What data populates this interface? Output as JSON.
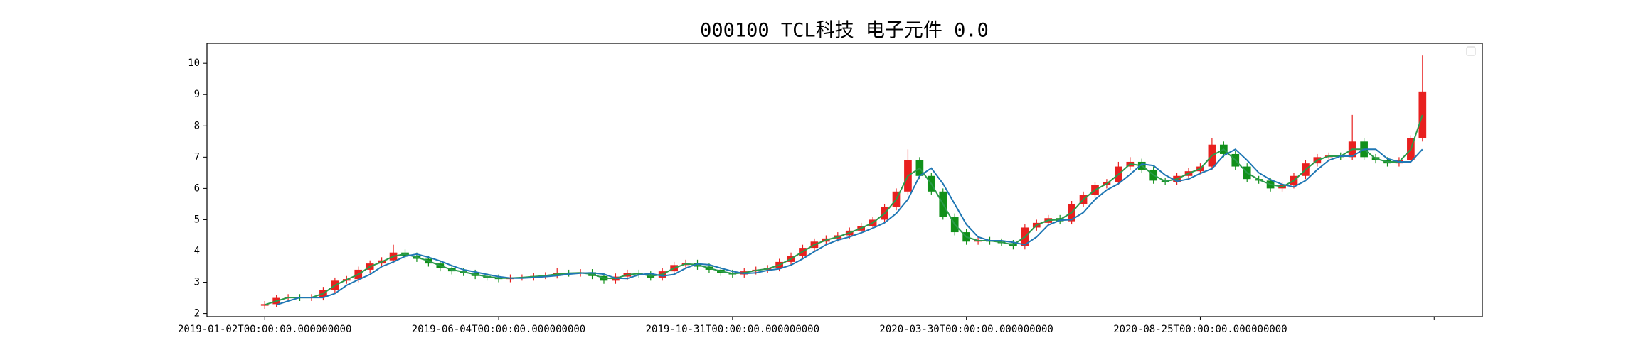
{
  "chart_data": {
    "type": "candlestick",
    "title": "000100 TCL科技 电子元件 0.0",
    "x": [
      0,
      5,
      10,
      15,
      20,
      25,
      30,
      35,
      40,
      45,
      50,
      55,
      60,
      65,
      70,
      75,
      80,
      85,
      90,
      95,
      100,
      105,
      110,
      115,
      120,
      125,
      130,
      135,
      140,
      145,
      150,
      155,
      160,
      165,
      170,
      175,
      180,
      185,
      190,
      195,
      200,
      205,
      210,
      215,
      220,
      225,
      230,
      235,
      240,
      245,
      250,
      255,
      260,
      265,
      270,
      275,
      280,
      285,
      290,
      295,
      300,
      305,
      310,
      315,
      320,
      325,
      330,
      335,
      340,
      345,
      350,
      355,
      360,
      365,
      370,
      375,
      380,
      385,
      390,
      395,
      400,
      405,
      410,
      415,
      420,
      425,
      430,
      435,
      440,
      445,
      450,
      455,
      460,
      465,
      470,
      475,
      480,
      485,
      490,
      495
    ],
    "open": [
      2.25,
      2.3,
      2.5,
      2.52,
      2.5,
      2.52,
      2.75,
      3.05,
      3.1,
      3.4,
      3.6,
      3.7,
      3.95,
      3.85,
      3.75,
      3.6,
      3.45,
      3.35,
      3.3,
      3.2,
      3.15,
      3.1,
      3.15,
      3.15,
      3.2,
      3.22,
      3.3,
      3.28,
      3.32,
      3.2,
      3.05,
      3.18,
      3.3,
      3.25,
      3.15,
      3.35,
      3.55,
      3.62,
      3.5,
      3.4,
      3.3,
      3.25,
      3.35,
      3.4,
      3.45,
      3.65,
      3.85,
      4.1,
      4.3,
      4.4,
      4.5,
      4.65,
      4.8,
      5.0,
      5.4,
      5.9,
      6.9,
      6.4,
      5.9,
      5.1,
      4.6,
      4.3,
      4.35,
      4.3,
      4.25,
      4.15,
      4.75,
      4.9,
      5.05,
      4.95,
      5.5,
      5.8,
      6.1,
      6.2,
      6.7,
      6.85,
      6.6,
      6.25,
      6.2,
      6.4,
      6.55,
      6.7,
      7.4,
      7.1,
      6.7,
      6.3,
      6.25,
      6.0,
      6.1,
      6.4,
      6.8,
      7.0,
      7.05,
      7.0,
      7.5,
      7.0,
      6.9,
      6.8,
      6.9,
      7.6
    ],
    "high": [
      2.4,
      2.6,
      2.62,
      2.62,
      2.62,
      2.85,
      3.15,
      3.2,
      3.5,
      3.7,
      3.8,
      4.2,
      4.05,
      3.95,
      3.85,
      3.7,
      3.55,
      3.45,
      3.4,
      3.3,
      3.25,
      3.25,
      3.25,
      3.3,
      3.32,
      3.45,
      3.4,
      3.42,
      3.42,
      3.3,
      3.28,
      3.4,
      3.4,
      3.35,
      3.45,
      3.65,
      3.72,
      3.72,
      3.6,
      3.5,
      3.4,
      3.45,
      3.5,
      3.55,
      3.75,
      3.95,
      4.2,
      4.4,
      4.5,
      4.6,
      4.75,
      4.9,
      5.1,
      5.5,
      6.0,
      7.25,
      7.0,
      6.5,
      6.0,
      5.2,
      4.7,
      4.45,
      4.45,
      4.4,
      4.35,
      4.85,
      5.0,
      5.15,
      5.15,
      5.6,
      5.9,
      6.2,
      6.3,
      6.85,
      7.0,
      6.95,
      6.7,
      6.35,
      6.5,
      6.65,
      6.8,
      7.6,
      7.5,
      7.2,
      6.8,
      6.4,
      6.35,
      6.2,
      6.5,
      6.9,
      7.1,
      7.15,
      7.15,
      8.35,
      7.6,
      7.1,
      7.0,
      7.0,
      7.7,
      10.25
    ],
    "low": [
      2.15,
      2.2,
      2.4,
      2.4,
      2.4,
      2.42,
      2.65,
      2.95,
      3.0,
      3.3,
      3.5,
      3.6,
      3.75,
      3.65,
      3.5,
      3.35,
      3.25,
      3.2,
      3.1,
      3.05,
      3.0,
      3.0,
      3.05,
      3.05,
      3.1,
      3.12,
      3.18,
      3.18,
      3.1,
      2.95,
      2.95,
      3.08,
      3.15,
      3.05,
      3.05,
      3.25,
      3.45,
      3.4,
      3.3,
      3.2,
      3.15,
      3.15,
      3.25,
      3.3,
      3.35,
      3.55,
      3.75,
      4.0,
      4.2,
      4.3,
      4.4,
      4.55,
      4.7,
      4.9,
      5.3,
      5.8,
      6.3,
      5.8,
      5.0,
      4.5,
      4.2,
      4.2,
      4.2,
      4.15,
      4.05,
      4.05,
      4.65,
      4.8,
      4.85,
      4.85,
      5.4,
      5.7,
      6.0,
      6.1,
      6.6,
      6.5,
      6.15,
      6.1,
      6.1,
      6.3,
      6.45,
      6.6,
      7.0,
      6.6,
      6.2,
      6.15,
      5.9,
      5.9,
      6.0,
      6.3,
      6.7,
      6.9,
      6.9,
      6.9,
      6.9,
      6.8,
      6.7,
      6.7,
      6.8,
      7.5
    ],
    "close": [
      2.3,
      2.5,
      2.52,
      2.5,
      2.52,
      2.75,
      3.05,
      3.1,
      3.4,
      3.6,
      3.7,
      3.95,
      3.85,
      3.75,
      3.6,
      3.45,
      3.35,
      3.3,
      3.2,
      3.15,
      3.1,
      3.15,
      3.15,
      3.2,
      3.22,
      3.3,
      3.28,
      3.32,
      3.2,
      3.05,
      3.18,
      3.3,
      3.25,
      3.15,
      3.35,
      3.55,
      3.62,
      3.5,
      3.4,
      3.3,
      3.25,
      3.35,
      3.4,
      3.45,
      3.65,
      3.85,
      4.1,
      4.3,
      4.4,
      4.5,
      4.65,
      4.8,
      5.0,
      5.4,
      5.9,
      6.9,
      6.4,
      5.9,
      5.1,
      4.6,
      4.3,
      4.35,
      4.3,
      4.25,
      4.15,
      4.75,
      4.9,
      5.05,
      4.95,
      5.5,
      5.8,
      6.1,
      6.2,
      6.7,
      6.85,
      6.6,
      6.25,
      6.2,
      6.4,
      6.55,
      6.7,
      7.4,
      7.1,
      6.7,
      6.3,
      6.25,
      6.0,
      6.1,
      6.4,
      6.8,
      7.0,
      7.05,
      7.0,
      7.5,
      7.0,
      6.9,
      6.8,
      6.9,
      7.6,
      9.1
    ],
    "up_color": "#e8201f",
    "down_color": "#11901a",
    "lines": [
      {
        "color": "#2a9a4a",
        "values": [
          2.28,
          2.4,
          2.51,
          2.51,
          2.51,
          2.64,
          2.9,
          3.08,
          3.25,
          3.5,
          3.65,
          3.83,
          3.9,
          3.8,
          3.68,
          3.53,
          3.4,
          3.33,
          3.25,
          3.18,
          3.13,
          3.13,
          3.15,
          3.18,
          3.21,
          3.26,
          3.29,
          3.3,
          3.26,
          3.13,
          3.12,
          3.24,
          3.28,
          3.2,
          3.25,
          3.45,
          3.59,
          3.56,
          3.45,
          3.35,
          3.28,
          3.3,
          3.38,
          3.43,
          3.55,
          3.75,
          3.98,
          4.2,
          4.35,
          4.45,
          4.58,
          4.73,
          4.9,
          5.2,
          5.65,
          6.4,
          6.65,
          6.15,
          5.5,
          4.85,
          4.45,
          4.33,
          4.33,
          4.28,
          4.2,
          4.45,
          4.83,
          4.98,
          5.0,
          5.23,
          5.65,
          5.95,
          6.15,
          6.45,
          6.78,
          6.73,
          6.43,
          6.23,
          6.3,
          6.48,
          6.63,
          7.05,
          7.25,
          6.9,
          6.5,
          6.28,
          6.13,
          6.05,
          6.25,
          6.6,
          6.9,
          7.03,
          7.03,
          7.25,
          7.25,
          6.95,
          6.85,
          6.85,
          7.25,
          8.35
        ]
      },
      {
        "color": "#1f77b4",
        "values": [
          null,
          2.28,
          2.4,
          2.51,
          2.51,
          2.51,
          2.64,
          2.9,
          3.08,
          3.25,
          3.5,
          3.65,
          3.83,
          3.9,
          3.8,
          3.68,
          3.53,
          3.4,
          3.33,
          3.25,
          3.18,
          3.13,
          3.13,
          3.15,
          3.18,
          3.21,
          3.26,
          3.29,
          3.3,
          3.26,
          3.13,
          3.12,
          3.24,
          3.28,
          3.2,
          3.25,
          3.45,
          3.59,
          3.56,
          3.45,
          3.35,
          3.28,
          3.3,
          3.38,
          3.43,
          3.55,
          3.75,
          3.98,
          4.2,
          4.35,
          4.45,
          4.58,
          4.73,
          4.9,
          5.2,
          5.65,
          6.4,
          6.65,
          6.15,
          5.5,
          4.85,
          4.45,
          4.33,
          4.33,
          4.28,
          4.2,
          4.45,
          4.83,
          4.98,
          5.0,
          5.23,
          5.65,
          5.95,
          6.15,
          6.45,
          6.78,
          6.73,
          6.43,
          6.23,
          6.3,
          6.48,
          6.63,
          7.05,
          7.25,
          6.9,
          6.5,
          6.28,
          6.13,
          6.05,
          6.25,
          6.6,
          6.9,
          7.03,
          7.03,
          7.25,
          7.25,
          6.95,
          6.85,
          6.85,
          7.25
        ]
      }
    ],
    "xlim": [
      -24.7,
      520.6
    ],
    "xticks": [
      {
        "value": 0,
        "label": "2019-01-02T00:00:00.000000000"
      },
      {
        "value": 100,
        "label": "2019-06-04T00:00:00.000000000"
      },
      {
        "value": 200,
        "label": "2019-10-31T00:00:00.000000000"
      },
      {
        "value": 300,
        "label": "2020-03-30T00:00:00.000000000"
      },
      {
        "value": 400,
        "label": "2020-08-25T00:00:00.000000000"
      },
      {
        "value": 500,
        "label": null
      }
    ],
    "ylim": [
      1.9,
      10.64
    ],
    "yticks": [
      2,
      3,
      4,
      5,
      6,
      7,
      8,
      9,
      10
    ],
    "grid": false
  }
}
